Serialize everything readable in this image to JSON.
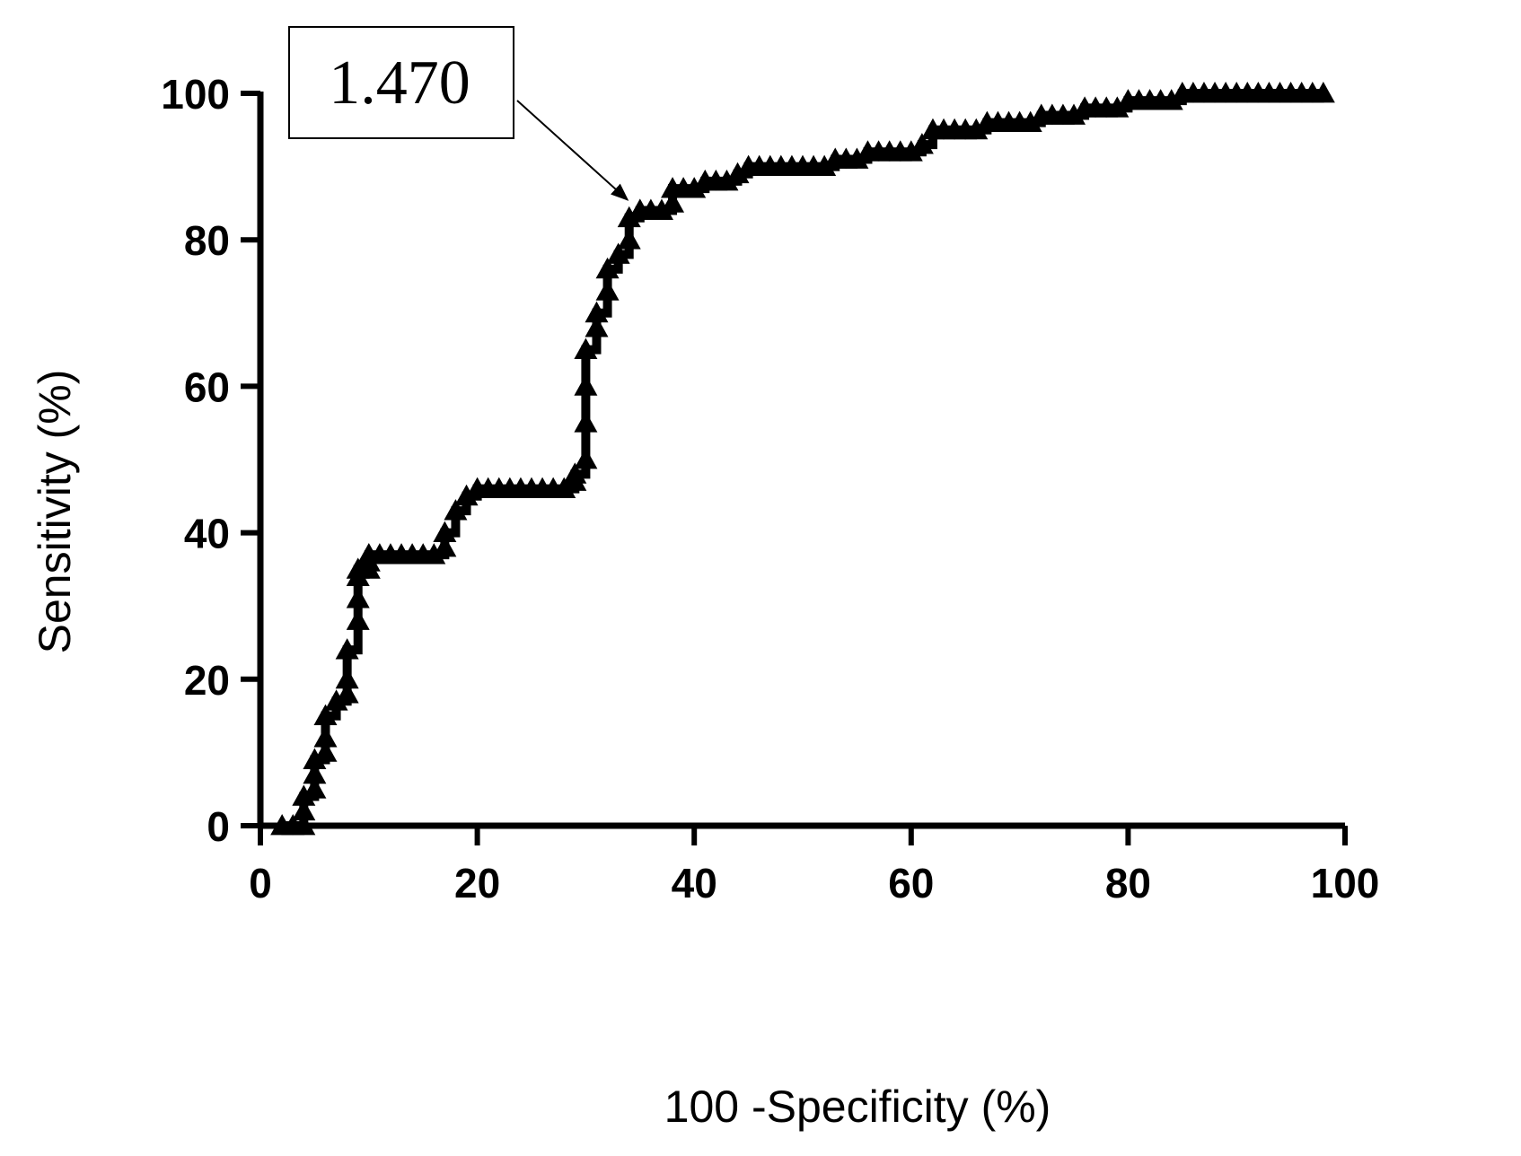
{
  "chart_data": {
    "type": "line",
    "title": "",
    "xlabel": "100 -Specificity (%)",
    "ylabel": "Sensitivity (%)",
    "xlim": [
      0,
      100
    ],
    "ylim": [
      0,
      100
    ],
    "xticks": [
      "0",
      "20",
      "40",
      "60",
      "80",
      "100"
    ],
    "yticks": [
      "0",
      "20",
      "40",
      "60",
      "80",
      "100"
    ],
    "grid": false,
    "legend": "none",
    "marker": "triangle",
    "line_color": "#000000",
    "series": [
      {
        "x": [
          2,
          3,
          4,
          4,
          4,
          5,
          5,
          5,
          6,
          6,
          6,
          7,
          8,
          8,
          8,
          9,
          9,
          9,
          9,
          10,
          10,
          10,
          10,
          11,
          12,
          13,
          14,
          15,
          16,
          17,
          17,
          18,
          19,
          20,
          21,
          22,
          23,
          24,
          25,
          26,
          27,
          28,
          29,
          29,
          30,
          30,
          30,
          30,
          31,
          31,
          32,
          32,
          33,
          34,
          34,
          35,
          35,
          36,
          37,
          38,
          38,
          39,
          40,
          41,
          42,
          43,
          44,
          45,
          46,
          47,
          48,
          49,
          50,
          51,
          52,
          53,
          54,
          55,
          56,
          57,
          58,
          59,
          60,
          61,
          62,
          63,
          64,
          65,
          66,
          67,
          68,
          69,
          70,
          71,
          72,
          73,
          74,
          75,
          76,
          77,
          78,
          79,
          80,
          81,
          82,
          83,
          84,
          85,
          86,
          87,
          88,
          89,
          90,
          91,
          92,
          93,
          94,
          95,
          96,
          97,
          98
        ],
        "y": [
          0,
          0,
          0,
          2,
          4,
          5,
          7,
          9,
          10,
          12,
          15,
          17,
          18,
          20,
          24,
          28,
          31,
          34,
          35,
          35,
          36,
          37,
          37,
          37,
          37,
          37,
          37,
          37,
          37,
          38,
          40,
          43,
          45,
          46,
          46,
          46,
          46,
          46,
          46,
          46,
          46,
          46,
          47,
          48,
          50,
          55,
          60,
          65,
          68,
          70,
          73,
          76,
          78,
          80,
          83,
          84,
          84,
          84,
          84,
          85,
          87,
          87,
          87,
          88,
          88,
          88,
          89,
          90,
          90,
          90,
          90,
          90,
          90,
          90,
          90,
          91,
          91,
          91,
          92,
          92,
          92,
          92,
          92,
          93,
          95,
          95,
          95,
          95,
          95,
          96,
          96,
          96,
          96,
          96,
          97,
          97,
          97,
          97,
          98,
          98,
          98,
          98,
          99,
          99,
          99,
          99,
          99,
          100,
          100,
          100,
          100,
          100,
          100,
          100,
          100,
          100,
          100,
          100,
          100,
          100,
          100
        ]
      }
    ],
    "annotations": [
      {
        "text": "1.470",
        "x": 34.5,
        "y": 84
      }
    ]
  }
}
